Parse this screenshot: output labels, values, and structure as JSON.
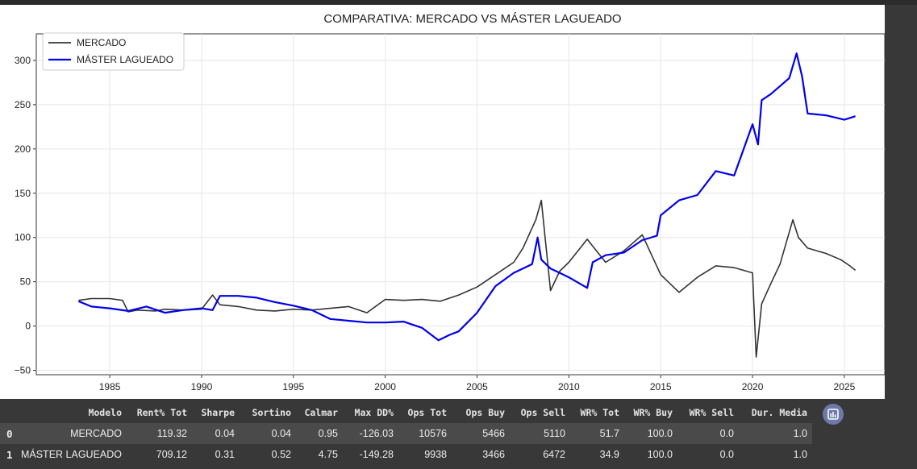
{
  "chart_data": {
    "type": "line",
    "title": "COMPARATIVA: MERCADO VS MÁSTER LAGUEADO",
    "xlabel": "",
    "ylabel": "",
    "xlim": [
      1981,
      2027.2
    ],
    "ylim": [
      -55,
      330
    ],
    "xticks": [
      "1985",
      "1990",
      "1995",
      "2000",
      "2005",
      "2010",
      "2015",
      "2020",
      "2025"
    ],
    "yticks": [
      "−50",
      "0",
      "50",
      "100",
      "150",
      "200",
      "250",
      "300"
    ],
    "grid": true,
    "legend": "top-left",
    "series": [
      {
        "name": "MERCADO",
        "color": "#333333",
        "points": [
          [
            1983.3,
            29
          ],
          [
            1984,
            31
          ],
          [
            1985,
            31
          ],
          [
            1985.7,
            29
          ],
          [
            1986,
            16
          ],
          [
            1986.5,
            18
          ],
          [
            1987.5,
            17
          ],
          [
            1988,
            19
          ],
          [
            1989,
            18
          ],
          [
            1990,
            19
          ],
          [
            1990.6,
            35
          ],
          [
            1991,
            24
          ],
          [
            1992,
            22
          ],
          [
            1993,
            18
          ],
          [
            1994,
            17
          ],
          [
            1995,
            19
          ],
          [
            1996,
            18
          ],
          [
            1997,
            20
          ],
          [
            1998,
            22
          ],
          [
            1999,
            15
          ],
          [
            2000,
            30
          ],
          [
            2001,
            29
          ],
          [
            2002,
            30
          ],
          [
            2003,
            28
          ],
          [
            2004,
            35
          ],
          [
            2005,
            44
          ],
          [
            2006,
            58
          ],
          [
            2007,
            72
          ],
          [
            2007.5,
            88
          ],
          [
            2008.2,
            120
          ],
          [
            2008.5,
            142
          ],
          [
            2009,
            40
          ],
          [
            2009.5,
            62
          ],
          [
            2010,
            72
          ],
          [
            2011,
            98
          ],
          [
            2012,
            72
          ],
          [
            2013,
            85
          ],
          [
            2014,
            103
          ],
          [
            2015,
            58
          ],
          [
            2016,
            38
          ],
          [
            2017,
            55
          ],
          [
            2018,
            68
          ],
          [
            2019,
            66
          ],
          [
            2020,
            60
          ],
          [
            2020.2,
            -35
          ],
          [
            2020.5,
            25
          ],
          [
            2021,
            48
          ],
          [
            2021.5,
            70
          ],
          [
            2022.2,
            120
          ],
          [
            2022.5,
            100
          ],
          [
            2023,
            88
          ],
          [
            2024,
            82
          ],
          [
            2024.8,
            75
          ],
          [
            2025.3,
            68
          ],
          [
            2025.6,
            63
          ]
        ]
      },
      {
        "name": "MÁSTER LAGUEADO",
        "color": "#0000ee",
        "points": [
          [
            1983.3,
            28
          ],
          [
            1984,
            22
          ],
          [
            1985,
            20
          ],
          [
            1986,
            17
          ],
          [
            1987,
            22
          ],
          [
            1988,
            15
          ],
          [
            1989,
            18
          ],
          [
            1990,
            20
          ],
          [
            1990.6,
            18
          ],
          [
            1991,
            34
          ],
          [
            1992,
            34
          ],
          [
            1993,
            32
          ],
          [
            1994,
            27
          ],
          [
            1995,
            23
          ],
          [
            1996,
            18
          ],
          [
            1997,
            8
          ],
          [
            1998,
            6
          ],
          [
            1999,
            4
          ],
          [
            2000,
            4
          ],
          [
            2001,
            5
          ],
          [
            2002,
            -2
          ],
          [
            2002.9,
            -16
          ],
          [
            2003.5,
            -10
          ],
          [
            2004,
            -6
          ],
          [
            2005,
            15
          ],
          [
            2006,
            45
          ],
          [
            2007,
            60
          ],
          [
            2007.5,
            65
          ],
          [
            2008,
            70
          ],
          [
            2008.3,
            100
          ],
          [
            2008.5,
            75
          ],
          [
            2009,
            65
          ],
          [
            2009.5,
            60
          ],
          [
            2010,
            55
          ],
          [
            2011,
            43
          ],
          [
            2011.3,
            72
          ],
          [
            2012,
            80
          ],
          [
            2013,
            83
          ],
          [
            2014,
            97
          ],
          [
            2014.8,
            102
          ],
          [
            2015,
            125
          ],
          [
            2016,
            142
          ],
          [
            2017,
            148
          ],
          [
            2018,
            175
          ],
          [
            2019,
            170
          ],
          [
            2020,
            228
          ],
          [
            2020.3,
            205
          ],
          [
            2020.5,
            255
          ],
          [
            2021,
            262
          ],
          [
            2022,
            280
          ],
          [
            2022.4,
            308
          ],
          [
            2022.7,
            282
          ],
          [
            2023,
            240
          ],
          [
            2024,
            238
          ],
          [
            2025,
            233
          ],
          [
            2025.6,
            237
          ]
        ]
      }
    ]
  },
  "table": {
    "columns": [
      "",
      "Modelo",
      "Rent% Tot",
      "Sharpe",
      "Sortino",
      "Calmar",
      "Max DD%",
      "Ops Tot",
      "Ops Buy",
      "Ops Sell",
      "WR% Tot",
      "WR% Buy",
      "WR% Sell",
      "Dur. Media"
    ],
    "rows": [
      [
        "0",
        "MERCADO",
        "119.32",
        "0.04",
        "0.04",
        "0.95",
        "-126.03",
        "10576",
        "5466",
        "5110",
        "51.7",
        "100.0",
        "0.0",
        "1.0"
      ],
      [
        "1",
        "MÁSTER LAGUEADO",
        "709.12",
        "0.31",
        "0.52",
        "4.75",
        "-149.28",
        "9938",
        "3466",
        "6472",
        "34.9",
        "100.0",
        "0.0",
        "1.0"
      ]
    ]
  }
}
